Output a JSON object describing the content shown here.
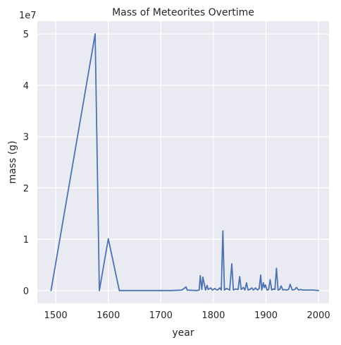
{
  "chart_data": {
    "type": "line",
    "title": "Mass of Meteorites Overtime",
    "xlabel": "year",
    "ylabel": "mass (g)",
    "y_offset_label": "1e7",
    "xlim": [
      1465,
      2020
    ],
    "ylim": [
      -2500000,
      52500000
    ],
    "x_ticks": [
      1500,
      1600,
      1700,
      1800,
      1900,
      2000
    ],
    "y_ticks": [
      0,
      1,
      2,
      3,
      4,
      5
    ],
    "y_tick_scale": 10000000,
    "grid": true,
    "background": "#eaeaf2",
    "series": [
      {
        "color": "#4c72b0",
        "x": [
          1491,
          1575,
          1583,
          1600,
          1621,
          1700,
          1720,
          1740,
          1748,
          1750,
          1768,
          1773,
          1775,
          1778,
          1780,
          1785,
          1788,
          1790,
          1795,
          1798,
          1803,
          1805,
          1808,
          1812,
          1815,
          1818,
          1821,
          1825,
          1831,
          1835,
          1838,
          1842,
          1847,
          1850,
          1853,
          1857,
          1860,
          1863,
          1866,
          1869,
          1873,
          1876,
          1880,
          1884,
          1887,
          1890,
          1892,
          1895,
          1897,
          1899,
          1902,
          1905,
          1908,
          1911,
          1914,
          1917,
          1920,
          1923,
          1926,
          1929,
          1932,
          1935,
          1939,
          1943,
          1946,
          1950,
          1955,
          1958,
          1962,
          1966,
          1970,
          1975,
          1980,
          1990,
          2000
        ],
        "y": [
          0,
          50000000,
          0,
          10100000,
          0,
          0,
          0,
          100000,
          700000,
          100000,
          0,
          100000,
          2900000,
          200000,
          2600000,
          100000,
          1000000,
          200000,
          500000,
          100000,
          400000,
          200000,
          100000,
          500000,
          100000,
          11600000,
          100000,
          400000,
          100000,
          5200000,
          100000,
          300000,
          200000,
          2700000,
          200000,
          600000,
          100000,
          1500000,
          100000,
          200000,
          500000,
          100000,
          500000,
          100000,
          400000,
          3000000,
          100000,
          1500000,
          600000,
          1100000,
          100000,
          200000,
          2100000,
          100000,
          300000,
          200000,
          4300000,
          100000,
          200000,
          900000,
          100000,
          200000,
          100000,
          200000,
          1200000,
          100000,
          200000,
          600000,
          100000,
          200000,
          100000,
          100000,
          100000,
          100000,
          0
        ]
      }
    ]
  }
}
